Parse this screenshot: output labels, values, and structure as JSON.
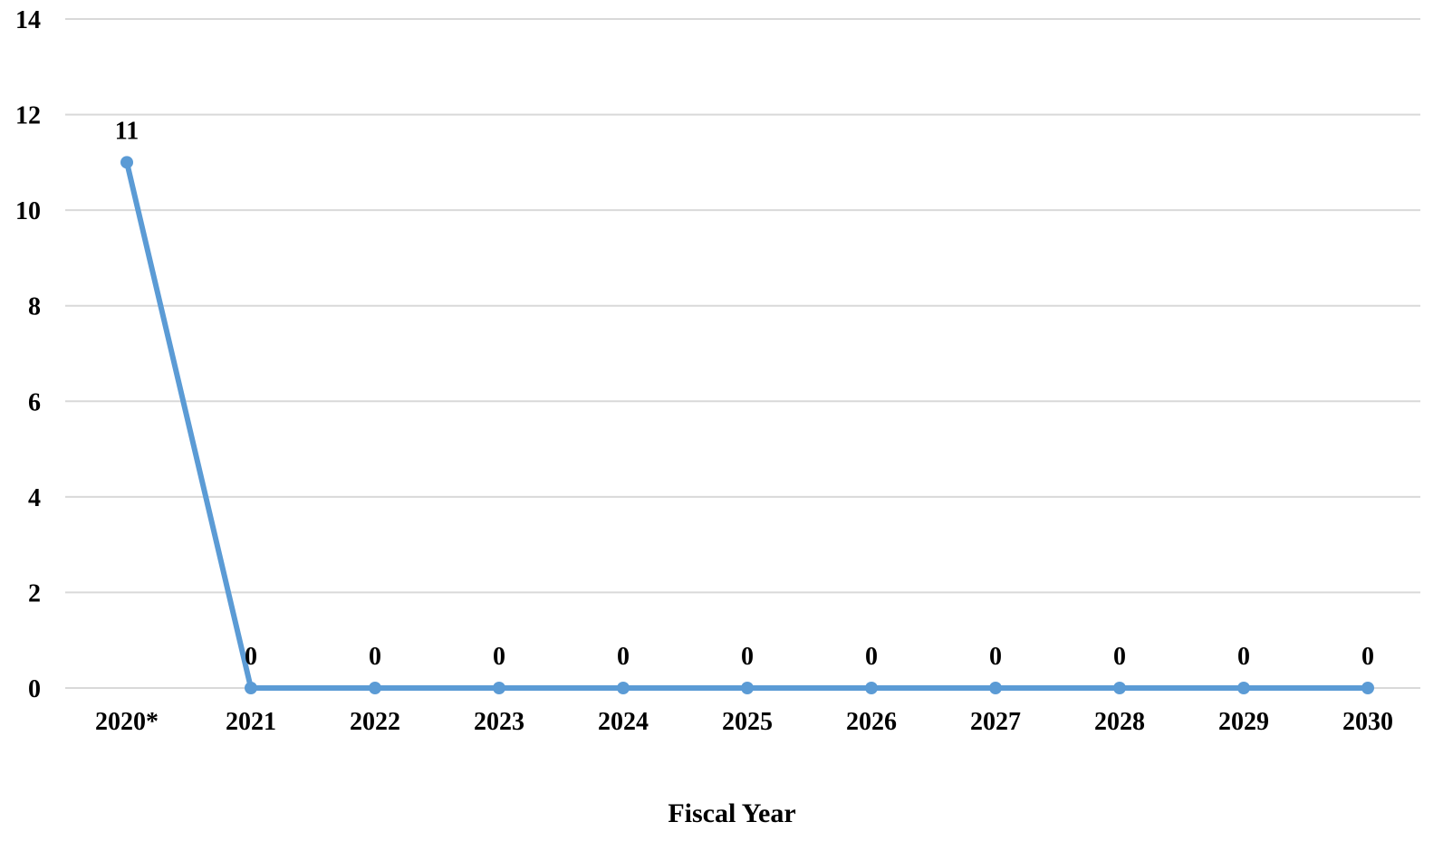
{
  "chart_data": {
    "type": "line",
    "categories": [
      "2020*",
      "2021",
      "2022",
      "2023",
      "2024",
      "2025",
      "2026",
      "2027",
      "2028",
      "2029",
      "2030"
    ],
    "values": [
      11,
      0,
      0,
      0,
      0,
      0,
      0,
      0,
      0,
      0,
      0
    ],
    "xlabel": "Fiscal Year",
    "ylabel": "",
    "ylim": [
      0,
      14
    ],
    "yticks": [
      0,
      2,
      4,
      6,
      8,
      10,
      12,
      14
    ],
    "grid": true,
    "data_labels": true,
    "line_color": "#5b9bd5",
    "grid_color": "#d9d9d9"
  }
}
